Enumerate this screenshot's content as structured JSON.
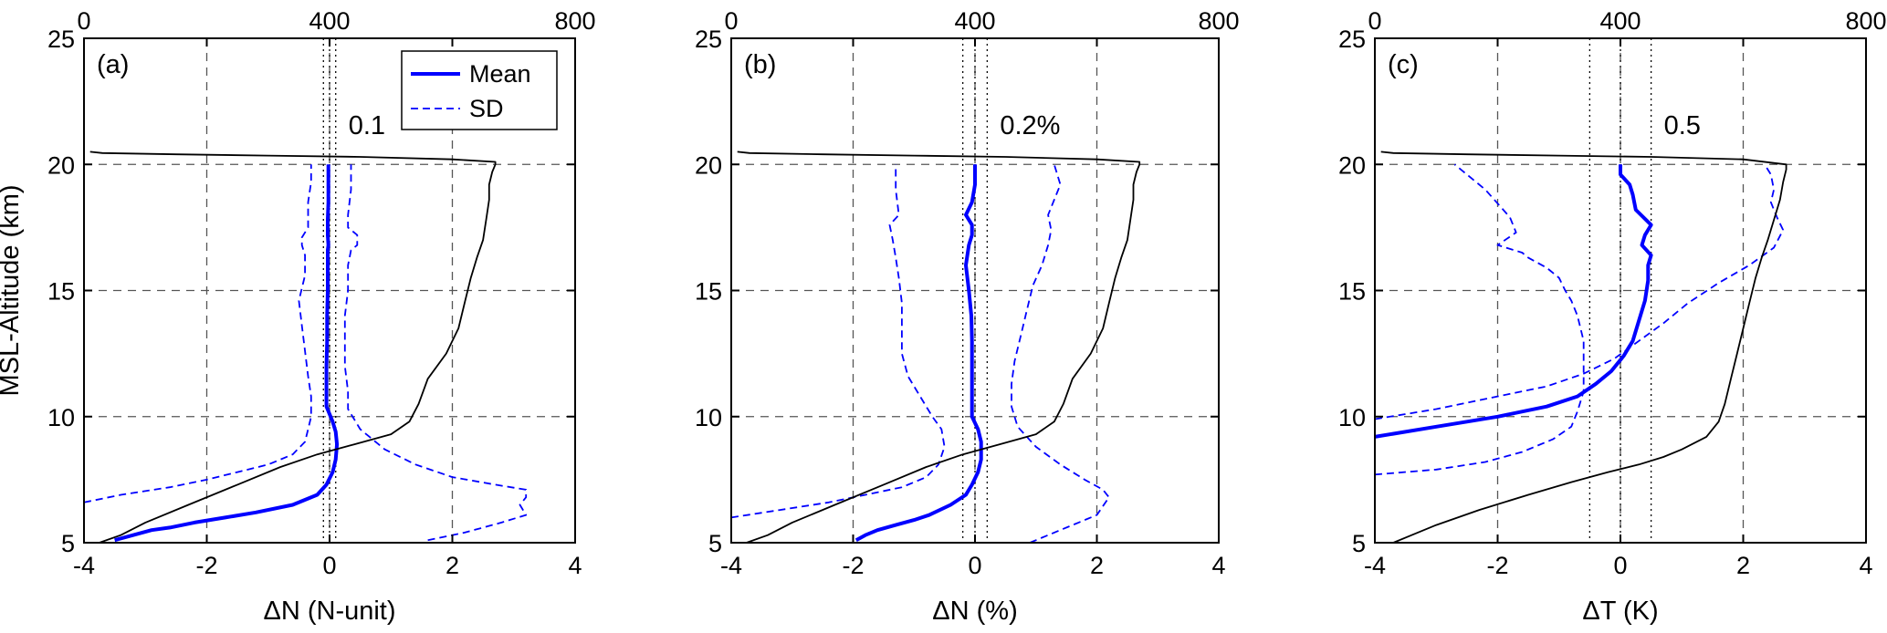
{
  "chart_data": [
    {
      "panel": "(a)",
      "type": "line",
      "xlabel": "ΔN (N-unit)",
      "ylabel": "MSL-Altitude (km)",
      "xlim": [
        -4,
        4
      ],
      "ylim": [
        5,
        25
      ],
      "xticks": [
        "-4",
        "-2",
        "0",
        "2",
        "4"
      ],
      "yticks": [
        "5",
        "10",
        "15",
        "20",
        "25"
      ],
      "top_xlim": [
        0,
        800
      ],
      "top_xticks": [
        "0",
        "400",
        "800"
      ],
      "annotation": "0.1",
      "vlines": [
        -0.1,
        0,
        0.1
      ],
      "grid": true,
      "legend": {
        "entries": [
          "Mean",
          "SD"
        ],
        "placement": "top-right"
      },
      "series": [
        {
          "name": "Mean",
          "style": "solid",
          "color": "#0000ff",
          "x": [
            -3.5,
            -3.2,
            -2.9,
            -2.6,
            -2.2,
            -1.7,
            -1.2,
            -0.6,
            -0.2,
            -0.05,
            0.05,
            0.1,
            0.12,
            0.1,
            0.05,
            -0.05,
            -0.05,
            -0.05,
            -0.04,
            -0.04,
            -0.03,
            -0.03,
            -0.03,
            -0.02,
            -0.03,
            -0.03,
            -0.03,
            -0.02,
            -0.02,
            -0.02
          ],
          "y": [
            5.1,
            5.3,
            5.5,
            5.6,
            5.8,
            6.0,
            6.2,
            6.5,
            6.9,
            7.3,
            7.8,
            8.3,
            8.9,
            9.4,
            9.8,
            10.4,
            11.0,
            12.0,
            13.0,
            14.0,
            15.0,
            16.0,
            16.6,
            16.8,
            17.2,
            17.5,
            17.8,
            18.5,
            19.3,
            20.0
          ]
        },
        {
          "name": "SD",
          "style": "dashed",
          "color": "#0000ff",
          "x": [
            -4.0,
            -3.4,
            -2.6,
            -2.0,
            -1.5,
            -1.0,
            -0.6,
            -0.4,
            -0.35,
            -0.3,
            -0.3,
            -0.35,
            -0.4,
            -0.45,
            -0.5,
            -0.4,
            -0.4,
            -0.45,
            -0.45,
            -0.35,
            -0.35,
            -0.3,
            -0.3
          ],
          "y": [
            6.6,
            6.9,
            7.2,
            7.5,
            7.8,
            8.1,
            8.5,
            9.0,
            9.5,
            10.0,
            10.8,
            11.6,
            12.6,
            13.6,
            14.6,
            15.6,
            16.4,
            16.8,
            17.1,
            17.5,
            18.5,
            19.3,
            20.0
          ]
        },
        {
          "name": "",
          "style": "dashed",
          "color": "#0000ff",
          "x": [
            1.6,
            2.2,
            2.8,
            3.2,
            3.1,
            3.2,
            3.2,
            2.7,
            2.0,
            1.4,
            0.9,
            0.5,
            0.3,
            0.3,
            0.25,
            0.25,
            0.25,
            0.3,
            0.3,
            0.35,
            0.45,
            0.45,
            0.3,
            0.3,
            0.35,
            0.35
          ],
          "y": [
            5.1,
            5.4,
            5.8,
            6.1,
            6.5,
            6.8,
            7.1,
            7.3,
            7.6,
            8.1,
            8.7,
            9.5,
            10.3,
            11.0,
            12.0,
            13.0,
            14.0,
            15.0,
            16.0,
            16.6,
            16.8,
            17.2,
            17.5,
            18.0,
            19.0,
            20.0
          ]
        },
        {
          "name": "",
          "style": "solid",
          "color": "#000000",
          "topAxis": true,
          "x": [
            25,
            60,
            100,
            170,
            250,
            320,
            380,
            440,
            500,
            530,
            545,
            560,
            590,
            610,
            620,
            630,
            640,
            650,
            655,
            660,
            660,
            665,
            670,
            670,
            600,
            450,
            300,
            150,
            30,
            10
          ],
          "y": [
            5.0,
            5.3,
            5.8,
            6.5,
            7.3,
            8.0,
            8.5,
            8.9,
            9.3,
            9.8,
            10.5,
            11.5,
            12.5,
            13.5,
            14.5,
            15.5,
            16.3,
            17.0,
            17.8,
            18.6,
            19.2,
            19.7,
            20.0,
            20.1,
            20.2,
            20.3,
            20.35,
            20.4,
            20.45,
            20.5
          ]
        }
      ]
    },
    {
      "panel": "(b)",
      "type": "line",
      "xlabel": "ΔN (%)",
      "ylabel": "",
      "xlim": [
        -4,
        4
      ],
      "ylim": [
        5,
        25
      ],
      "xticks": [
        "-4",
        "-2",
        "0",
        "2",
        "4"
      ],
      "yticks": [
        "5",
        "10",
        "15",
        "20",
        "25"
      ],
      "top_xlim": [
        0,
        800
      ],
      "top_xticks": [
        "0",
        "400",
        "800"
      ],
      "annotation": "0.2%",
      "vlines": [
        -0.2,
        0,
        0.2
      ],
      "grid": true,
      "series": [
        {
          "name": "Mean",
          "style": "solid",
          "color": "#0000ff",
          "x": [
            -1.95,
            -1.8,
            -1.6,
            -1.3,
            -1.0,
            -0.75,
            -0.4,
            -0.15,
            -0.05,
            0.05,
            0.1,
            0.1,
            0.05,
            -0.05,
            -0.05,
            -0.05,
            -0.05,
            -0.06,
            -0.1,
            -0.15,
            -0.1,
            -0.05,
            -0.05,
            -0.15,
            -0.05,
            0.0,
            0.0
          ],
          "y": [
            5.1,
            5.3,
            5.5,
            5.7,
            5.9,
            6.1,
            6.5,
            6.9,
            7.3,
            7.8,
            8.3,
            9.0,
            9.5,
            10.0,
            11.0,
            12.0,
            13.0,
            14.0,
            15.0,
            16.0,
            16.8,
            17.2,
            17.6,
            18.0,
            18.5,
            19.2,
            20.0
          ]
        },
        {
          "name": "SD",
          "style": "dashed",
          "color": "#0000ff",
          "x": [
            -4.0,
            -3.2,
            -2.4,
            -1.8,
            -1.2,
            -0.8,
            -0.6,
            -0.5,
            -0.55,
            -0.7,
            -0.9,
            -1.1,
            -1.2,
            -1.2,
            -1.2,
            -1.25,
            -1.3,
            -1.35,
            -1.4,
            -1.25,
            -1.3,
            -1.3
          ],
          "y": [
            6.0,
            6.3,
            6.6,
            6.9,
            7.2,
            7.6,
            8.1,
            8.8,
            9.5,
            10.0,
            10.8,
            11.6,
            12.5,
            13.5,
            14.5,
            15.5,
            16.3,
            17.0,
            17.6,
            18.0,
            19.0,
            20.0
          ]
        },
        {
          "name": "",
          "style": "dashed",
          "color": "#0000ff",
          "x": [
            0.9,
            1.3,
            1.7,
            2.0,
            2.2,
            2.1,
            1.8,
            1.4,
            1.0,
            0.7,
            0.6,
            0.6,
            0.65,
            0.75,
            0.85,
            0.95,
            1.1,
            1.2,
            1.25,
            1.2,
            1.4,
            1.3
          ],
          "y": [
            5.0,
            5.4,
            5.8,
            6.1,
            6.8,
            7.1,
            7.5,
            8.1,
            8.8,
            9.6,
            10.4,
            11.3,
            12.2,
            13.2,
            14.2,
            15.2,
            16.0,
            16.8,
            17.4,
            18.0,
            19.2,
            20.0
          ]
        },
        {
          "name": "",
          "style": "solid",
          "color": "#000000",
          "topAxis": true,
          "x": [
            25,
            60,
            100,
            170,
            250,
            320,
            380,
            440,
            500,
            530,
            545,
            560,
            590,
            610,
            620,
            630,
            640,
            650,
            655,
            660,
            660,
            665,
            670,
            670,
            600,
            450,
            300,
            150,
            30,
            10
          ],
          "y": [
            5.0,
            5.3,
            5.8,
            6.5,
            7.3,
            8.0,
            8.5,
            8.9,
            9.3,
            9.8,
            10.5,
            11.5,
            12.5,
            13.5,
            14.5,
            15.5,
            16.3,
            17.0,
            17.8,
            18.6,
            19.2,
            19.7,
            20.0,
            20.1,
            20.2,
            20.3,
            20.35,
            20.4,
            20.45,
            20.5
          ]
        }
      ]
    },
    {
      "panel": "(c)",
      "type": "line",
      "xlabel": "ΔT (K)",
      "ylabel": "",
      "xlim": [
        -4,
        4
      ],
      "ylim": [
        5,
        25
      ],
      "xticks": [
        "-4",
        "-2",
        "0",
        "2",
        "4"
      ],
      "yticks": [
        "5",
        "10",
        "15",
        "20",
        "25"
      ],
      "top_xlim": [
        0,
        800
      ],
      "top_xticks": [
        "0",
        "400",
        "800"
      ],
      "annotation": "0.5",
      "vlines": [
        -0.5,
        0,
        0.5
      ],
      "grid": true,
      "series": [
        {
          "name": "Mean",
          "style": "solid",
          "color": "#0000ff",
          "x": [
            -4.0,
            -3.0,
            -2.0,
            -1.2,
            -0.7,
            -0.4,
            -0.15,
            0.05,
            0.2,
            0.3,
            0.4,
            0.45,
            0.45,
            0.5,
            0.35,
            0.4,
            0.5,
            0.25,
            0.2,
            0.15,
            0.0,
            0.0
          ],
          "y": [
            9.2,
            9.6,
            10.0,
            10.4,
            10.8,
            11.3,
            11.8,
            12.4,
            13.0,
            13.8,
            14.6,
            15.4,
            16.0,
            16.4,
            16.8,
            17.2,
            17.6,
            18.2,
            18.8,
            19.2,
            19.6,
            20.0
          ]
        },
        {
          "name": "SD",
          "style": "dashed",
          "color": "#0000ff",
          "x": [
            -4.0,
            -3.0,
            -2.2,
            -1.6,
            -1.1,
            -0.8,
            -0.7,
            -0.6,
            -0.6,
            -0.6,
            -0.7,
            -0.8,
            -0.9,
            -1.0,
            -1.2,
            -1.5,
            -1.6,
            -2.0,
            -1.7,
            -1.8,
            -2.2,
            -2.7
          ],
          "y": [
            7.7,
            7.9,
            8.2,
            8.6,
            9.1,
            9.6,
            10.2,
            11.0,
            12.0,
            13.0,
            14.0,
            14.6,
            15.0,
            15.5,
            15.9,
            16.3,
            16.5,
            16.8,
            17.3,
            17.9,
            19.0,
            20.0
          ]
        },
        {
          "name": "",
          "style": "dashed",
          "color": "#0000ff",
          "x": [
            -4.0,
            -3.0,
            -2.0,
            -1.2,
            -0.6,
            -0.1,
            0.3,
            0.7,
            1.1,
            1.6,
            2.1,
            2.5,
            2.65,
            2.55,
            2.45,
            2.5,
            2.45,
            2.35
          ],
          "y": [
            9.9,
            10.3,
            10.8,
            11.2,
            11.7,
            12.3,
            13.0,
            13.7,
            14.5,
            15.3,
            16.0,
            16.7,
            17.4,
            17.9,
            18.5,
            19.0,
            19.6,
            20.0
          ]
        },
        {
          "name": "",
          "style": "solid",
          "color": "#000000",
          "topAxis": true,
          "x": [
            30,
            60,
            100,
            170,
            250,
            320,
            380,
            430,
            470,
            500,
            540,
            560,
            570,
            580,
            590,
            600,
            610,
            620,
            630,
            640,
            650,
            660,
            665,
            670,
            670,
            600,
            450,
            300,
            150,
            30,
            10
          ],
          "y": [
            5.0,
            5.3,
            5.7,
            6.3,
            6.9,
            7.4,
            7.8,
            8.1,
            8.4,
            8.7,
            9.2,
            9.8,
            10.5,
            11.5,
            12.5,
            13.5,
            14.5,
            15.5,
            16.3,
            17.0,
            17.8,
            18.6,
            19.3,
            19.8,
            20.0,
            20.2,
            20.3,
            20.35,
            20.4,
            20.45,
            20.5
          ]
        }
      ]
    }
  ]
}
